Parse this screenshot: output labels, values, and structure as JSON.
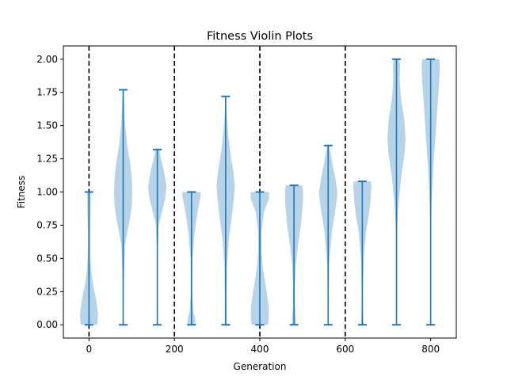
{
  "chart_data": {
    "type": "violin",
    "title": "Fitness Violin Plots",
    "xlabel": "Generation",
    "ylabel": "Fitness",
    "xlim": [
      -60,
      860
    ],
    "ylim": [
      -0.1,
      2.1
    ],
    "xticks": [
      0,
      200,
      400,
      600,
      800
    ],
    "yticks": [
      0.0,
      0.25,
      0.5,
      0.75,
      1.0,
      1.25,
      1.5,
      1.75,
      2.0
    ],
    "xtick_labels": [
      "0",
      "200",
      "400",
      "600",
      "800"
    ],
    "ytick_labels": [
      "0.00",
      "0.25",
      "0.50",
      "0.75",
      "1.00",
      "1.25",
      "1.50",
      "1.75",
      "2.00"
    ],
    "vertical_lines": [
      0,
      200,
      400,
      600
    ],
    "grid": false,
    "colors": {
      "body": "#a9cbe4",
      "line": "#1f77b4",
      "divider": "#000000"
    },
    "violins": [
      {
        "x": 0,
        "min": 0.0,
        "max": 1.0,
        "profile": [
          [
            0.0,
            0.9
          ],
          [
            0.08,
            1.0
          ],
          [
            0.2,
            0.75
          ],
          [
            0.3,
            0.45
          ],
          [
            0.4,
            0.25
          ],
          [
            0.5,
            0.15
          ],
          [
            0.6,
            0.12
          ],
          [
            0.7,
            0.12
          ],
          [
            0.8,
            0.15
          ],
          [
            0.9,
            0.18
          ],
          [
            1.0,
            0.2
          ]
        ]
      },
      {
        "x": 80,
        "min": 0.0,
        "max": 1.77,
        "profile": [
          [
            0.0,
            0.05
          ],
          [
            0.3,
            0.05
          ],
          [
            0.6,
            0.2
          ],
          [
            0.8,
            0.75
          ],
          [
            0.9,
            0.95
          ],
          [
            1.0,
            1.0
          ],
          [
            1.1,
            0.95
          ],
          [
            1.2,
            0.8
          ],
          [
            1.35,
            0.45
          ],
          [
            1.5,
            0.22
          ],
          [
            1.65,
            0.12
          ],
          [
            1.77,
            0.05
          ]
        ]
      },
      {
        "x": 160,
        "min": 0.0,
        "max": 1.32,
        "profile": [
          [
            0.0,
            0.03
          ],
          [
            0.5,
            0.03
          ],
          [
            0.75,
            0.15
          ],
          [
            0.85,
            0.5
          ],
          [
            0.95,
            0.85
          ],
          [
            1.0,
            0.95
          ],
          [
            1.05,
            1.0
          ],
          [
            1.15,
            0.75
          ],
          [
            1.25,
            0.4
          ],
          [
            1.32,
            0.2
          ]
        ]
      },
      {
        "x": 240,
        "min": 0.0,
        "max": 1.0,
        "profile": [
          [
            0.0,
            0.45
          ],
          [
            0.05,
            0.4
          ],
          [
            0.1,
            0.2
          ],
          [
            0.25,
            0.08
          ],
          [
            0.5,
            0.1
          ],
          [
            0.7,
            0.35
          ],
          [
            0.8,
            0.55
          ],
          [
            0.9,
            0.8
          ],
          [
            0.97,
            1.0
          ],
          [
            1.0,
            1.0
          ]
        ]
      },
      {
        "x": 320,
        "min": 0.0,
        "max": 1.72,
        "profile": [
          [
            0.0,
            0.1
          ],
          [
            0.2,
            0.1
          ],
          [
            0.45,
            0.15
          ],
          [
            0.65,
            0.35
          ],
          [
            0.8,
            0.65
          ],
          [
            0.95,
            0.9
          ],
          [
            1.05,
            1.0
          ],
          [
            1.15,
            0.85
          ],
          [
            1.3,
            0.5
          ],
          [
            1.45,
            0.25
          ],
          [
            1.6,
            0.1
          ],
          [
            1.72,
            0.03
          ]
        ]
      },
      {
        "x": 400,
        "min": 0.0,
        "max": 1.0,
        "profile": [
          [
            0.0,
            0.9
          ],
          [
            0.08,
            1.0
          ],
          [
            0.15,
            0.95
          ],
          [
            0.25,
            0.75
          ],
          [
            0.35,
            0.5
          ],
          [
            0.45,
            0.3
          ],
          [
            0.55,
            0.2
          ],
          [
            0.7,
            0.18
          ],
          [
            0.85,
            0.45
          ],
          [
            0.95,
            1.0
          ],
          [
            1.0,
            1.0
          ]
        ]
      },
      {
        "x": 480,
        "min": 0.0,
        "max": 1.05,
        "profile": [
          [
            0.0,
            0.25
          ],
          [
            0.05,
            0.2
          ],
          [
            0.15,
            0.1
          ],
          [
            0.3,
            0.1
          ],
          [
            0.45,
            0.2
          ],
          [
            0.6,
            0.45
          ],
          [
            0.75,
            0.75
          ],
          [
            0.9,
            0.95
          ],
          [
            1.0,
            1.0
          ],
          [
            1.05,
            0.9
          ]
        ]
      },
      {
        "x": 560,
        "min": 0.0,
        "max": 1.35,
        "profile": [
          [
            0.0,
            0.05
          ],
          [
            0.2,
            0.05
          ],
          [
            0.45,
            0.1
          ],
          [
            0.7,
            0.4
          ],
          [
            0.85,
            0.75
          ],
          [
            0.95,
            0.95
          ],
          [
            1.0,
            1.0
          ],
          [
            1.1,
            0.8
          ],
          [
            1.2,
            0.5
          ],
          [
            1.3,
            0.25
          ],
          [
            1.35,
            0.1
          ]
        ]
      },
      {
        "x": 640,
        "min": 0.0,
        "max": 1.08,
        "profile": [
          [
            0.0,
            0.15
          ],
          [
            0.05,
            0.1
          ],
          [
            0.2,
            0.05
          ],
          [
            0.5,
            0.15
          ],
          [
            0.7,
            0.4
          ],
          [
            0.8,
            0.65
          ],
          [
            0.9,
            0.85
          ],
          [
            1.0,
            0.95
          ],
          [
            1.05,
            1.0
          ],
          [
            1.08,
            0.95
          ]
        ]
      },
      {
        "x": 720,
        "min": 0.0,
        "max": 2.0,
        "profile": [
          [
            0.0,
            0.02
          ],
          [
            0.4,
            0.02
          ],
          [
            0.7,
            0.05
          ],
          [
            0.9,
            0.2
          ],
          [
            1.1,
            0.5
          ],
          [
            1.3,
            0.9
          ],
          [
            1.4,
            1.0
          ],
          [
            1.55,
            0.85
          ],
          [
            1.7,
            0.5
          ],
          [
            1.85,
            0.35
          ],
          [
            1.95,
            0.4
          ],
          [
            2.0,
            0.3
          ]
        ]
      },
      {
        "x": 800,
        "min": 0.0,
        "max": 2.0,
        "profile": [
          [
            0.0,
            0.02
          ],
          [
            0.5,
            0.02
          ],
          [
            0.8,
            0.05
          ],
          [
            1.0,
            0.15
          ],
          [
            1.2,
            0.3
          ],
          [
            1.4,
            0.5
          ],
          [
            1.6,
            0.7
          ],
          [
            1.75,
            0.85
          ],
          [
            1.85,
            0.95
          ],
          [
            1.95,
            1.0
          ],
          [
            2.0,
            0.95
          ]
        ]
      }
    ]
  }
}
